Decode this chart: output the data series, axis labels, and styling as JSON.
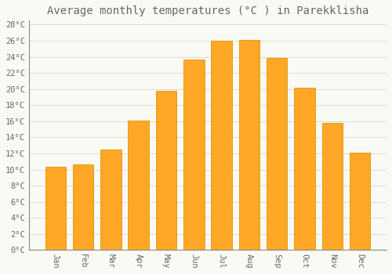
{
  "title": "Average monthly temperatures (°C ) in Parekklisha",
  "months": [
    "Jan",
    "Feb",
    "Mar",
    "Apr",
    "May",
    "Jun",
    "Jul",
    "Aug",
    "Sep",
    "Oct",
    "Nov",
    "Dec"
  ],
  "values": [
    10.3,
    10.6,
    12.5,
    16.1,
    19.8,
    23.7,
    26.0,
    26.1,
    23.9,
    20.2,
    15.8,
    12.1
  ],
  "bar_color": "#FFA726",
  "bar_edge_color": "#E59400",
  "background_color": "#FAFAF5",
  "grid_color": "#CCCCCC",
  "text_color": "#666666",
  "ylim": [
    0,
    28.5
  ],
  "yticks": [
    0,
    2,
    4,
    6,
    8,
    10,
    12,
    14,
    16,
    18,
    20,
    22,
    24,
    26,
    28
  ],
  "title_fontsize": 10,
  "tick_fontsize": 7.5,
  "bar_width": 0.75
}
